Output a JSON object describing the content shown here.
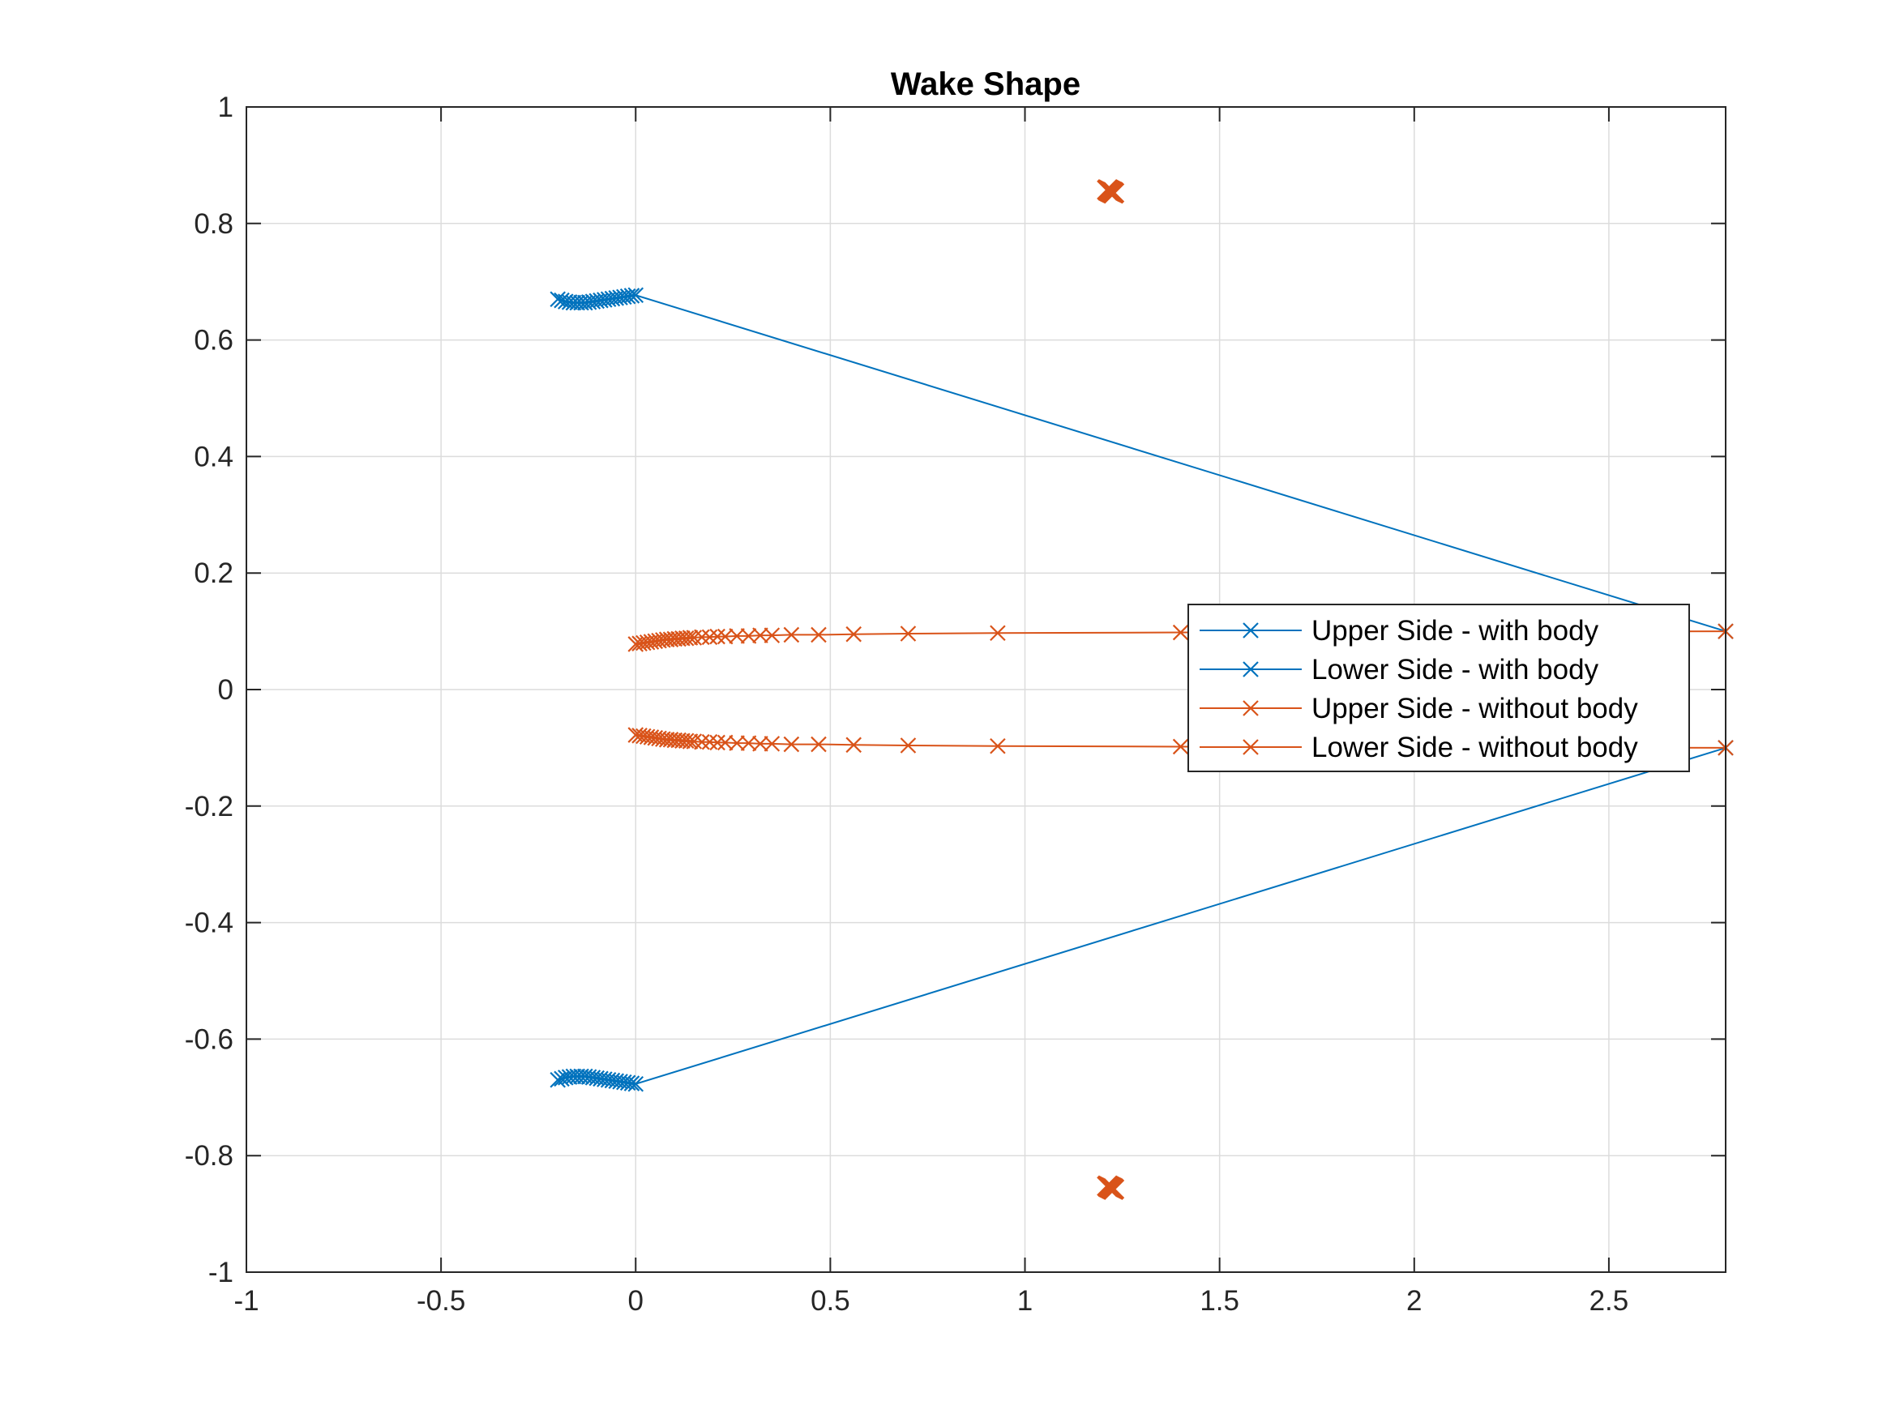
{
  "chart_data": {
    "type": "line",
    "title": "Wake Shape",
    "xlabel": "",
    "ylabel": "",
    "xlim": [
      -1,
      2.8
    ],
    "ylim": [
      -1,
      1
    ],
    "xticks": [
      -1,
      -0.5,
      0,
      0.5,
      1,
      1.5,
      2,
      2.5
    ],
    "xtick_labels": [
      "-1",
      "-0.5",
      "0",
      "0.5",
      "1",
      "1.5",
      "2",
      "2.5"
    ],
    "yticks": [
      -1,
      -0.8,
      -0.6,
      -0.4,
      -0.2,
      0,
      0.2,
      0.4,
      0.6,
      0.8,
      1
    ],
    "ytick_labels": [
      "-1",
      "-0.8",
      "-0.6",
      "-0.4",
      "-0.2",
      "0",
      "0.2",
      "0.4",
      "0.6",
      "0.8",
      "1"
    ],
    "grid": true,
    "legend_position": "right",
    "marker": "x",
    "series": [
      {
        "name": "Upper Side - with body",
        "color": "#0072BD",
        "x": [
          -0.2,
          -0.19,
          -0.18,
          -0.17,
          -0.16,
          -0.15,
          -0.14,
          -0.13,
          -0.12,
          -0.11,
          -0.1,
          -0.09,
          -0.08,
          -0.07,
          -0.06,
          -0.05,
          -0.04,
          -0.03,
          -0.02,
          -0.01,
          0.0,
          2.8
        ],
        "y": [
          0.67,
          0.668,
          0.666,
          0.665,
          0.664,
          0.664,
          0.664,
          0.664,
          0.665,
          0.666,
          0.667,
          0.668,
          0.669,
          0.67,
          0.671,
          0.672,
          0.673,
          0.674,
          0.675,
          0.676,
          0.677,
          0.1
        ]
      },
      {
        "name": "Lower Side - with body",
        "color": "#0072BD",
        "x": [
          -0.2,
          -0.19,
          -0.18,
          -0.17,
          -0.16,
          -0.15,
          -0.14,
          -0.13,
          -0.12,
          -0.11,
          -0.1,
          -0.09,
          -0.08,
          -0.07,
          -0.06,
          -0.05,
          -0.04,
          -0.03,
          -0.02,
          -0.01,
          0.0,
          2.8
        ],
        "y": [
          -0.67,
          -0.668,
          -0.666,
          -0.665,
          -0.664,
          -0.664,
          -0.664,
          -0.664,
          -0.665,
          -0.666,
          -0.667,
          -0.668,
          -0.669,
          -0.67,
          -0.671,
          -0.672,
          -0.673,
          -0.674,
          -0.675,
          -0.676,
          -0.677,
          -0.1
        ]
      },
      {
        "name": "Upper Side - without body",
        "color": "#D95319",
        "x": [
          0.0,
          0.01,
          0.02,
          0.03,
          0.04,
          0.05,
          0.06,
          0.07,
          0.08,
          0.09,
          0.1,
          0.11,
          0.12,
          0.13,
          0.14,
          0.15,
          0.17,
          0.19,
          0.21,
          0.23,
          0.26,
          0.29,
          0.32,
          0.35,
          0.4,
          0.47,
          0.56,
          0.7,
          0.93,
          1.4,
          2.8
        ],
        "y": [
          0.078,
          0.079,
          0.08,
          0.081,
          0.082,
          0.083,
          0.084,
          0.085,
          0.086,
          0.086,
          0.087,
          0.087,
          0.088,
          0.088,
          0.089,
          0.089,
          0.09,
          0.09,
          0.091,
          0.091,
          0.092,
          0.092,
          0.093,
          0.093,
          0.094,
          0.094,
          0.095,
          0.096,
          0.097,
          0.098,
          0.1
        ]
      },
      {
        "name": "Lower Side - without body",
        "color": "#D95319",
        "x": [
          0.0,
          0.01,
          0.02,
          0.03,
          0.04,
          0.05,
          0.06,
          0.07,
          0.08,
          0.09,
          0.1,
          0.11,
          0.12,
          0.13,
          0.14,
          0.15,
          0.17,
          0.19,
          0.21,
          0.23,
          0.26,
          0.29,
          0.32,
          0.35,
          0.4,
          0.47,
          0.56,
          0.7,
          0.93,
          1.4,
          2.8
        ],
        "y": [
          -0.078,
          -0.079,
          -0.08,
          -0.081,
          -0.082,
          -0.083,
          -0.084,
          -0.085,
          -0.086,
          -0.086,
          -0.087,
          -0.087,
          -0.088,
          -0.088,
          -0.089,
          -0.089,
          -0.09,
          -0.09,
          -0.091,
          -0.091,
          -0.092,
          -0.092,
          -0.093,
          -0.093,
          -0.094,
          -0.094,
          -0.095,
          -0.096,
          -0.097,
          -0.098,
          -0.1
        ]
      }
    ],
    "extra_markers": [
      {
        "color": "#D95319",
        "x": 1.22,
        "y": 0.855
      },
      {
        "color": "#D95319",
        "x": 1.22,
        "y": -0.855
      }
    ]
  }
}
